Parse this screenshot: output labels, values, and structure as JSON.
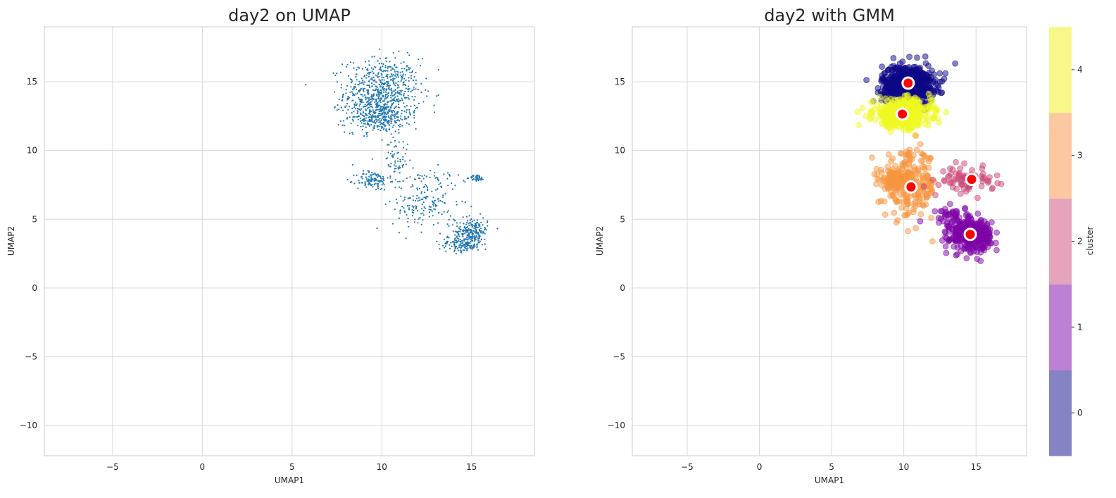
{
  "chart_data": [
    {
      "type": "scatter",
      "title": "day2 on UMAP",
      "xlabel": "UMAP1",
      "ylabel": "UMAP2",
      "xlim": [
        -8.8,
        18.5
      ],
      "ylim": [
        -12.2,
        19.0
      ],
      "xticks": [
        -5,
        0,
        5,
        10,
        15
      ],
      "yticks": [
        -10,
        -5,
        0,
        5,
        10,
        15
      ],
      "grid": true,
      "point_color": "#1f77b4",
      "clusters": [
        {
          "cx": 10.0,
          "cy": 14.2,
          "sx": 1.05,
          "sy": 1.25,
          "n": 700
        },
        {
          "cx": 9.8,
          "cy": 12.4,
          "sx": 0.9,
          "sy": 0.55,
          "n": 250
        },
        {
          "cx": 9.5,
          "cy": 7.8,
          "sx": 0.45,
          "sy": 0.35,
          "n": 110
        },
        {
          "cx": 15.3,
          "cy": 8.0,
          "sx": 0.2,
          "sy": 0.12,
          "n": 45
        },
        {
          "cx": 15.0,
          "cy": 4.1,
          "sx": 0.45,
          "sy": 0.5,
          "n": 230
        },
        {
          "cx": 14.4,
          "cy": 3.2,
          "sx": 0.6,
          "sy": 0.3,
          "n": 130
        },
        {
          "cx": 12.4,
          "cy": 6.0,
          "sx": 0.9,
          "sy": 0.9,
          "n": 160
        },
        {
          "cx": 10.8,
          "cy": 9.3,
          "sx": 0.3,
          "sy": 0.8,
          "n": 60
        },
        {
          "cx": 12.5,
          "cy": 8.0,
          "sx": 1.0,
          "sy": 0.4,
          "n": 40
        }
      ]
    },
    {
      "type": "scatter",
      "title": "day2 with GMM",
      "xlabel": "UMAP1",
      "ylabel": "UMAP2",
      "xlim": [
        -8.8,
        18.5
      ],
      "ylim": [
        -12.2,
        19.0
      ],
      "xticks": [
        -5,
        0,
        5,
        10,
        15
      ],
      "yticks": [
        -10,
        -5,
        0,
        5,
        10,
        15
      ],
      "grid": true,
      "colorbar": {
        "label": "cluster",
        "ticks": [
          "0",
          "1",
          "2",
          "3",
          "4"
        ],
        "colors": [
          "#8583c4",
          "#be80d5",
          "#e6a4bc",
          "#fcc8a1",
          "#f8f88a"
        ]
      },
      "cluster_colors": [
        "#0d0887",
        "#7e03a8",
        "#cc4778",
        "#f89540",
        "#f0f921"
      ],
      "clusters": [
        {
          "label": 0,
          "cx": 10.3,
          "cy": 14.8,
          "sx": 0.9,
          "sy": 0.7,
          "n": 650
        },
        {
          "label": 4,
          "cx": 9.9,
          "cy": 12.7,
          "sx": 1.0,
          "sy": 0.5,
          "n": 480
        },
        {
          "label": 3,
          "cx": 10.5,
          "cy": 7.5,
          "sx": 0.9,
          "sy": 1.2,
          "n": 220
        },
        {
          "label": 3,
          "cx": 9.3,
          "cy": 7.9,
          "sx": 0.45,
          "sy": 0.3,
          "n": 120
        },
        {
          "label": 2,
          "cx": 14.4,
          "cy": 7.8,
          "sx": 0.9,
          "sy": 0.45,
          "n": 75
        },
        {
          "label": 1,
          "cx": 14.6,
          "cy": 3.9,
          "sx": 0.7,
          "sy": 0.55,
          "n": 380
        },
        {
          "label": 1,
          "cx": 13.3,
          "cy": 5.3,
          "sx": 0.6,
          "sy": 0.3,
          "n": 40
        }
      ],
      "centers": [
        {
          "x": 10.3,
          "y": 14.9
        },
        {
          "x": 9.9,
          "y": 12.65
        },
        {
          "x": 10.5,
          "y": 7.35
        },
        {
          "x": 14.7,
          "y": 7.9
        },
        {
          "x": 14.6,
          "y": 3.9
        }
      ]
    }
  ]
}
